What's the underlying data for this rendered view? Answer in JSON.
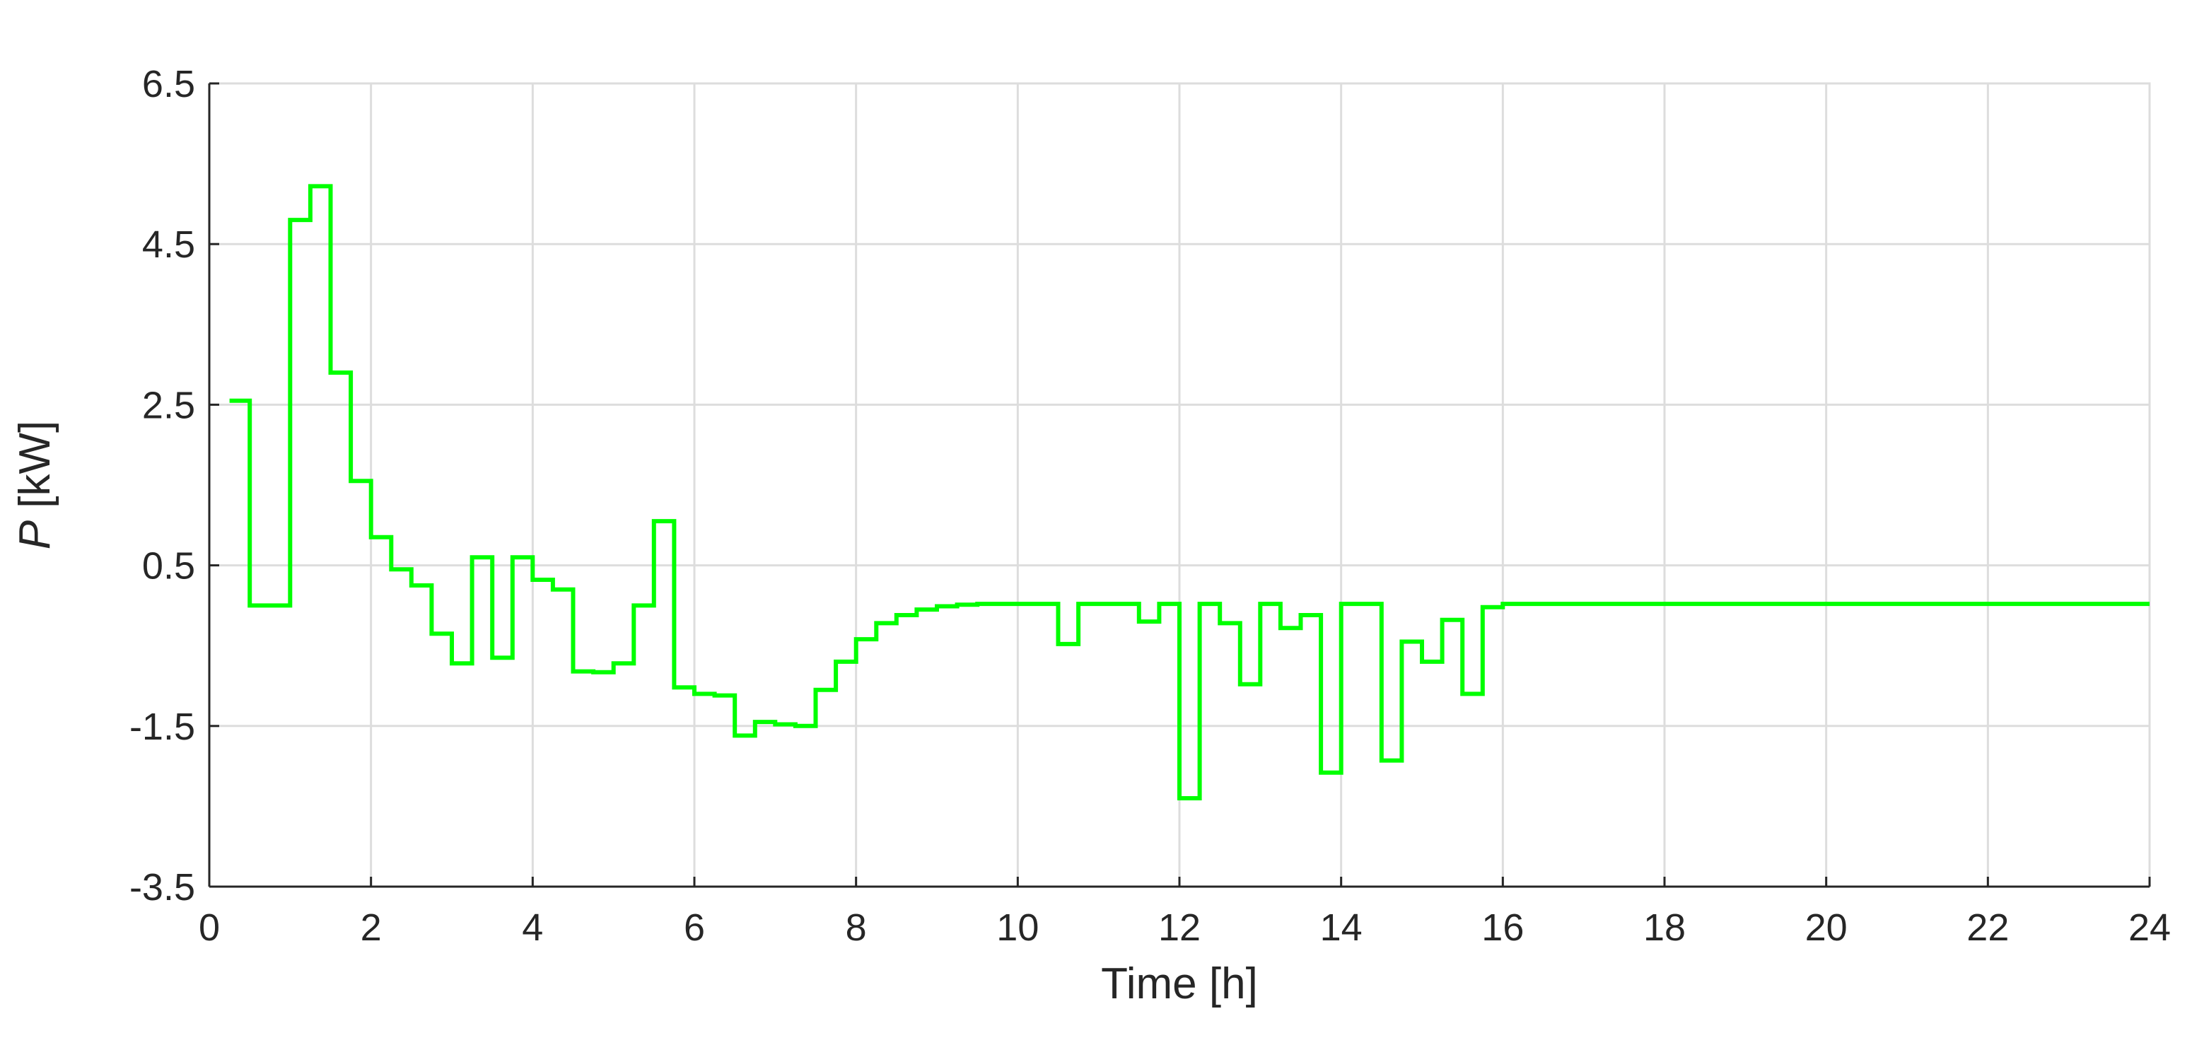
{
  "chart_data": {
    "type": "line",
    "step": true,
    "xlabel": "Time [h]",
    "ylabel_symbol": "P",
    "ylabel_unit": " [kW]",
    "xlim": [
      0,
      24
    ],
    "ylim": [
      -3.5,
      6.5
    ],
    "xticks": [
      "0",
      "2",
      "4",
      "6",
      "8",
      "10",
      "12",
      "14",
      "16",
      "18",
      "20",
      "22",
      "24"
    ],
    "yticks": [
      "-3.5",
      "-1.5",
      "0.5",
      "2.5",
      "4.5",
      "6.5"
    ],
    "grid": true,
    "line_color": "#00ff00",
    "series": [
      {
        "x": [
          0.25,
          0.5,
          0.75,
          1.0,
          1.25,
          1.5,
          1.75,
          2.0,
          2.25,
          2.5,
          2.75,
          3.0,
          3.25,
          3.5,
          3.75,
          4.0,
          4.25,
          4.5,
          4.75,
          5.0,
          5.25,
          5.5,
          5.75,
          6.0,
          6.25,
          6.5,
          6.75,
          7.0,
          7.25,
          7.5,
          7.75,
          8.0,
          8.25,
          8.5,
          8.75,
          9.0,
          9.25,
          9.5,
          9.75,
          10.0,
          10.25,
          10.5,
          10.75,
          11.0,
          11.25,
          11.5,
          11.75,
          12.0,
          12.25,
          12.5,
          12.75,
          13.0,
          13.25,
          13.5,
          13.75,
          14.0,
          14.25,
          14.5,
          14.75,
          15.0,
          15.25,
          15.5,
          15.75,
          16.0,
          24.0
        ],
        "y": [
          2.55,
          0.0,
          0.0,
          4.8,
          5.22,
          2.9,
          1.55,
          0.85,
          0.45,
          0.25,
          -0.35,
          -0.72,
          0.6,
          -0.65,
          0.6,
          0.32,
          0.2,
          -0.82,
          -0.83,
          -0.72,
          0.0,
          1.05,
          -1.02,
          -1.1,
          -1.12,
          -1.62,
          -1.45,
          -1.48,
          -1.5,
          -1.05,
          -0.7,
          -0.42,
          -0.22,
          -0.12,
          -0.05,
          -0.01,
          0.01,
          0.02,
          0.02,
          0.02,
          0.02,
          -0.48,
          0.02,
          0.02,
          0.02,
          -0.2,
          0.02,
          -2.4,
          0.02,
          -0.22,
          -0.98,
          0.02,
          -0.28,
          -0.12,
          -2.08,
          0.02,
          0.02,
          -1.93,
          -0.45,
          -0.7,
          -0.18,
          -1.1,
          -0.02,
          0.02,
          0.02
        ]
      }
    ]
  }
}
